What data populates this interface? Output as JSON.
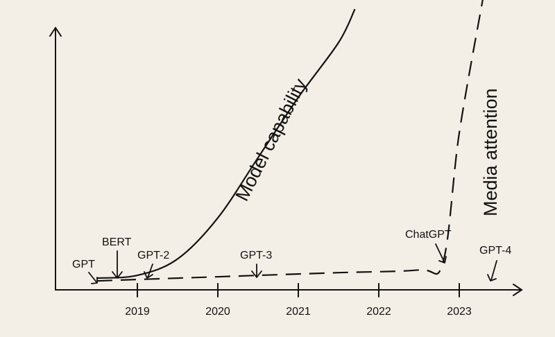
{
  "chart_data": {
    "type": "line",
    "title": "",
    "xlabel": "",
    "ylabel": "",
    "x_ticks": [
      "2019",
      "2020",
      "2021",
      "2022",
      "2023"
    ],
    "grid": false,
    "legend": "none",
    "series": [
      {
        "name": "Model capability",
        "style": "solid",
        "points": [
          [
            2018.5,
            0.02
          ],
          [
            2019.0,
            0.03
          ],
          [
            2019.5,
            0.09
          ],
          [
            2020.0,
            0.24
          ],
          [
            2020.5,
            0.46
          ],
          [
            2021.0,
            0.68
          ],
          [
            2021.5,
            0.88
          ],
          [
            2021.7,
            1.0
          ]
        ]
      },
      {
        "name": "Media attention",
        "style": "dashed",
        "points": [
          [
            2018.5,
            0.01
          ],
          [
            2019.5,
            0.02
          ],
          [
            2020.5,
            0.03
          ],
          [
            2021.5,
            0.04
          ],
          [
            2022.5,
            0.05
          ],
          [
            2022.8,
            0.08
          ],
          [
            2023.0,
            0.55
          ],
          [
            2023.3,
            1.05
          ]
        ]
      }
    ],
    "curve_labels": [
      "Model capability",
      "Media attention"
    ],
    "annotations": [
      {
        "label": "GPT",
        "x": 2018.45
      },
      {
        "label": "BERT",
        "x": 2018.78
      },
      {
        "label": "GPT-2",
        "x": 2019.12
      },
      {
        "label": "GPT-3",
        "x": 2020.5
      },
      {
        "label": "ChatGPT",
        "x": 2022.8
      },
      {
        "label": "GPT-4",
        "x": 2023.45
      }
    ]
  }
}
